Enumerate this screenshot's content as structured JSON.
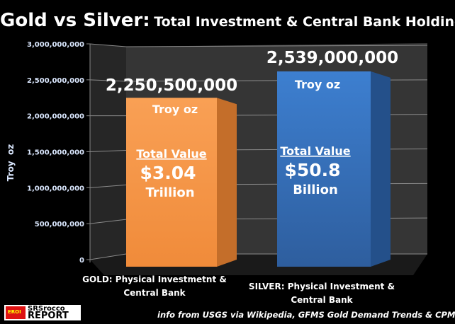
{
  "title": {
    "main": "Gold vs Silver:",
    "sub": "Total Investment & Central Bank Holdings"
  },
  "chart_data": {
    "type": "bar",
    "categories": [
      "GOLD: Physical Investmetnt & Central Bank",
      "SILVER: Physical Investment & Central Bank"
    ],
    "values": [
      2250500000,
      2539000000
    ],
    "ylabel": "Troy  oz",
    "ylim": [
      0,
      3000000000
    ],
    "yticks": [
      "0",
      "500,000,000",
      "1,000,000,000",
      "1,500,000,000",
      "2,000,000,000",
      "2,500,000,000",
      "3,000,000,000"
    ],
    "grid": true,
    "style": "3d-column",
    "colors": [
      "#f79646",
      "#3a74c4"
    ],
    "annotations": [
      {
        "value_label": "2,250,500,000",
        "unit": "Troy oz",
        "value_title": "Total Value",
        "amount": "$3.04",
        "scale": "Trillion"
      },
      {
        "value_label": "2,539,000,000",
        "unit": "Troy oz",
        "value_title": "Total Value",
        "amount": "$50.8",
        "scale": "Billion"
      }
    ]
  },
  "categories_lines": [
    [
      "GOLD: Physical Investmetnt &",
      "Central Bank"
    ],
    [
      "SILVER: Physical Investment &",
      "Central Bank"
    ]
  ],
  "credit": "info from USGS via Wikipedia, GFMS Gold Demand Trends & CPM Group",
  "logo": {
    "flag": "EROI",
    "line1": "SRSrocco",
    "line2": "REPORT"
  }
}
